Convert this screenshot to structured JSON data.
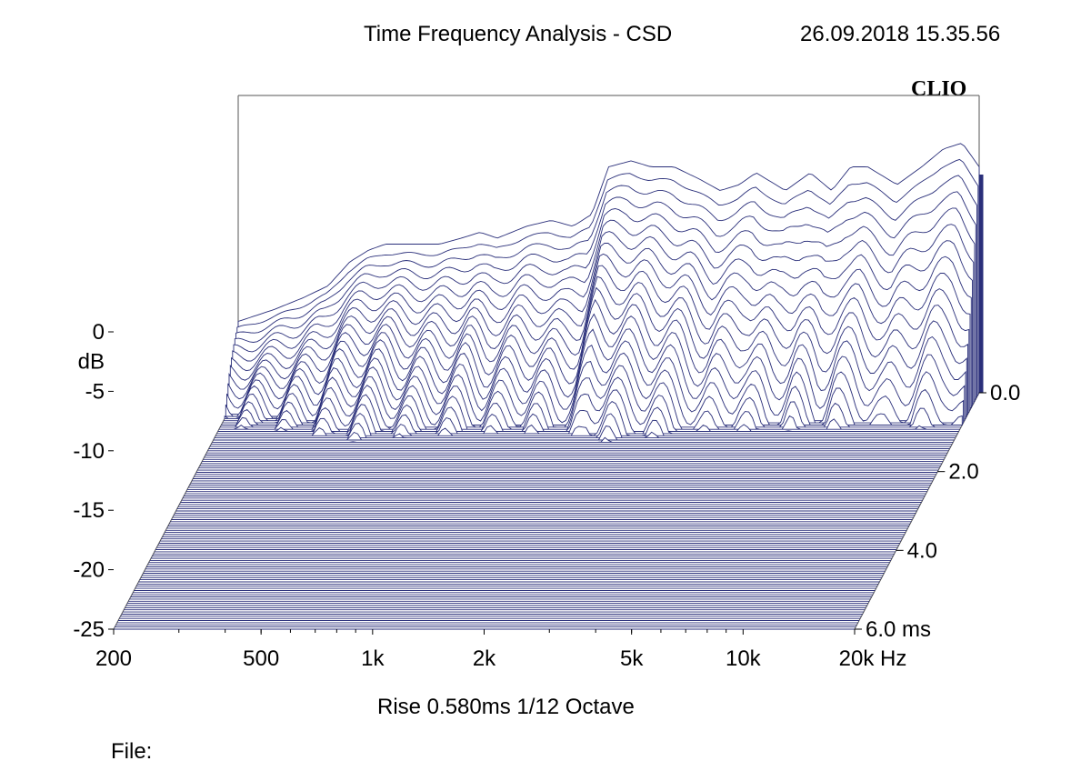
{
  "header": {
    "title": "Time Frequency Analysis - CSD",
    "timestamp": "26.09.2018 15.35.56",
    "brand": "CLIO"
  },
  "footer": {
    "subtitle": "Rise 0.580ms   1/12 Octave",
    "file_label": "File:"
  },
  "colors": {
    "trace": "#2a2f7a",
    "frame": "#555555"
  },
  "chart_data": {
    "type": "waterfall",
    "title": "Time Frequency Analysis - CSD",
    "xlabel": "Hz",
    "ylabel": "dB",
    "zlabel": "ms",
    "x_scale": "log",
    "xlim": [
      200,
      20000
    ],
    "ylim": [
      -25,
      0
    ],
    "zlim": [
      0,
      6.0
    ],
    "x_ticks": [
      200,
      500,
      1000,
      2000,
      5000,
      10000,
      20000
    ],
    "x_tick_labels": [
      "200",
      "500",
      "1k",
      "2k",
      "5k",
      "10k",
      "20k Hz"
    ],
    "y_ticks": [
      0,
      -5,
      -10,
      -15,
      -20,
      -25
    ],
    "y_tick_labels": [
      "0",
      "-5",
      "-10",
      "-15",
      "-20",
      "-25"
    ],
    "y_unit_label": "dB",
    "z_ticks": [
      0,
      2.0,
      4.0,
      6.0
    ],
    "z_tick_labels": [
      "0.0",
      "2.0",
      "4.0",
      "6.0  ms"
    ],
    "front_slice": {
      "time_ms": 0.0,
      "freq_hz": [
        200,
        250,
        300,
        350,
        400,
        450,
        500,
        600,
        700,
        800,
        900,
        1000,
        1200,
        1400,
        1600,
        1800,
        2000,
        2300,
        2600,
        3000,
        3500,
        4000,
        4500,
        5000,
        6000,
        7000,
        8000,
        9000,
        10000,
        12000,
        14000,
        16000,
        18000,
        20000
      ],
      "db": [
        -19,
        -18,
        -17,
        -16,
        -14,
        -13,
        -12.5,
        -12.5,
        -12.5,
        -12,
        -11.5,
        -12,
        -11,
        -10.5,
        -11,
        -10,
        -6,
        -5.5,
        -6,
        -6,
        -7,
        -8,
        -7.5,
        -6.5,
        -8,
        -6.5,
        -8,
        -6,
        -6,
        -7.5,
        -6,
        -4.5,
        -4,
        -6
      ]
    },
    "back_slice": {
      "time_ms": 6.0,
      "db_floor": -25
    },
    "rise_ms": 0.58,
    "resolution": "1/12 Octave"
  }
}
